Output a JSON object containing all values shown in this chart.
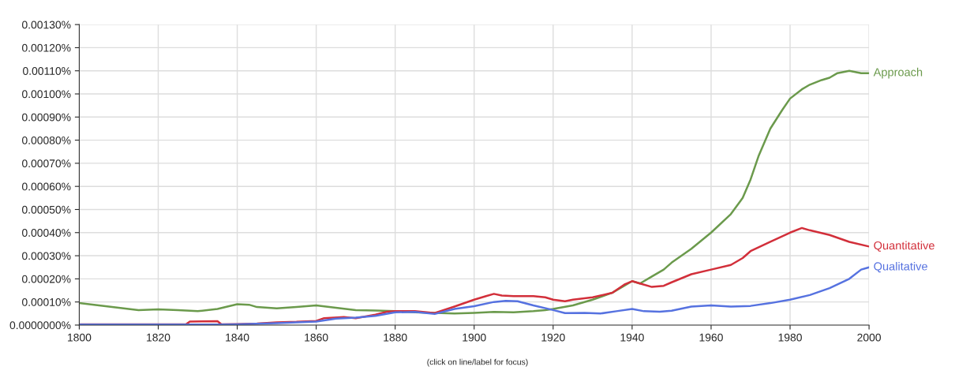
{
  "chart_data": {
    "type": "line",
    "series": [
      {
        "name": "Approach",
        "color": "#6b9a4c",
        "x": [
          1800,
          1805,
          1810,
          1815,
          1820,
          1825,
          1830,
          1835,
          1840,
          1843,
          1845,
          1850,
          1855,
          1860,
          1865,
          1870,
          1875,
          1880,
          1885,
          1890,
          1895,
          1900,
          1905,
          1910,
          1915,
          1918,
          1920,
          1925,
          1930,
          1935,
          1938,
          1940,
          1942,
          1945,
          1948,
          1950,
          1955,
          1960,
          1965,
          1968,
          1970,
          1972,
          1975,
          1978,
          1980,
          1983,
          1985,
          1988,
          1990,
          1992,
          1995,
          1998,
          2000
        ],
        "values": [
          9.5e-05,
          8.5e-05,
          7.5e-05,
          6.5e-05,
          6.8e-05,
          6.5e-05,
          6e-05,
          7e-05,
          9e-05,
          8.8e-05,
          7.8e-05,
          7.2e-05,
          7.8e-05,
          8.5e-05,
          7.5e-05,
          6.5e-05,
          6.3e-05,
          6e-05,
          5.5e-05,
          5.3e-05,
          5e-05,
          5.3e-05,
          5.7e-05,
          5.5e-05,
          6e-05,
          6.5e-05,
          7e-05,
          8.5e-05,
          0.00011,
          0.00014,
          0.00017,
          0.00019,
          0.00018,
          0.00021,
          0.00024,
          0.00027,
          0.00033,
          0.0004,
          0.00048,
          0.00055,
          0.00063,
          0.00073,
          0.00085,
          0.00093,
          0.00098,
          0.00102,
          0.00104,
          0.00106,
          0.00107,
          0.00109,
          0.0011,
          0.00109,
          0.00109
        ]
      },
      {
        "name": "Quantitative",
        "color": "#d22f3a",
        "x": [
          1800,
          1827,
          1828,
          1835,
          1836,
          1840,
          1845,
          1850,
          1855,
          1860,
          1862,
          1867,
          1870,
          1875,
          1878,
          1880,
          1885,
          1890,
          1895,
          1900,
          1903,
          1905,
          1907,
          1910,
          1915,
          1918,
          1920,
          1923,
          1925,
          1930,
          1935,
          1938,
          1940,
          1942,
          1945,
          1948,
          1950,
          1955,
          1960,
          1965,
          1968,
          1970,
          1975,
          1980,
          1983,
          1985,
          1990,
          1995,
          2000
        ],
        "values": [
          3e-06,
          3e-06,
          1.5e-05,
          1.7e-05,
          3e-06,
          4e-06,
          7e-06,
          1.2e-05,
          1.4e-05,
          1.8e-05,
          3e-05,
          3.5e-05,
          3e-05,
          4.5e-05,
          5.8e-05,
          6e-05,
          6e-05,
          5.2e-05,
          8e-05,
          0.00011,
          0.000125,
          0.000135,
          0.000128,
          0.000125,
          0.000125,
          0.00012,
          0.00011,
          0.000103,
          0.00011,
          0.00012,
          0.00014,
          0.000175,
          0.00019,
          0.00018,
          0.000165,
          0.00017,
          0.000185,
          0.00022,
          0.00024,
          0.00026,
          0.00029,
          0.00032,
          0.00036,
          0.0004,
          0.00042,
          0.00041,
          0.00039,
          0.00036,
          0.00034
        ]
      },
      {
        "name": "Qualitative",
        "color": "#5672e0",
        "x": [
          1800,
          1835,
          1840,
          1850,
          1860,
          1865,
          1870,
          1875,
          1880,
          1885,
          1890,
          1895,
          1900,
          1905,
          1908,
          1911,
          1915,
          1920,
          1923,
          1928,
          1932,
          1936,
          1940,
          1943,
          1947,
          1950,
          1955,
          1960,
          1965,
          1970,
          1975,
          1980,
          1985,
          1990,
          1995,
          1998,
          2000
        ],
        "values": [
          2e-06,
          2e-06,
          3e-06,
          8e-06,
          1.5e-05,
          2.8e-05,
          3.2e-05,
          4e-05,
          5.5e-05,
          5.7e-05,
          4.8e-05,
          7e-05,
          8.2e-05,
          0.0001,
          0.000105,
          0.000103,
          8.5e-05,
          6.5e-05,
          5.2e-05,
          5.3e-05,
          5e-05,
          6e-05,
          7e-05,
          6e-05,
          5.8e-05,
          6.2e-05,
          8e-05,
          8.5e-05,
          8e-05,
          8.3e-05,
          9.5e-05,
          0.00011,
          0.00013,
          0.00016,
          0.0002,
          0.00024,
          0.00025
        ]
      }
    ],
    "xlim": [
      1800,
      2000
    ],
    "xticks": [
      1800,
      1820,
      1840,
      1860,
      1880,
      1900,
      1920,
      1940,
      1960,
      1980,
      2000
    ],
    "ylim": [
      0,
      0.0013
    ],
    "yticks": [
      {
        "value": 0,
        "label": "0.0000000%"
      },
      {
        "value": 0.0001,
        "label": "0.00010%"
      },
      {
        "value": 0.0002,
        "label": "0.00020%"
      },
      {
        "value": 0.0003,
        "label": "0.00030%"
      },
      {
        "value": 0.0004,
        "label": "0.00040%"
      },
      {
        "value": 0.0005,
        "label": "0.00050%"
      },
      {
        "value": 0.0006,
        "label": "0.00060%"
      },
      {
        "value": 0.0007,
        "label": "0.00070%"
      },
      {
        "value": 0.0008,
        "label": "0.00080%"
      },
      {
        "value": 0.0009,
        "label": "0.00090%"
      },
      {
        "value": 0.001,
        "label": "0.00100%"
      },
      {
        "value": 0.0011,
        "label": "0.00110%"
      },
      {
        "value": 0.0012,
        "label": "0.00120%"
      },
      {
        "value": 0.0013,
        "label": "0.00130%"
      }
    ],
    "grid": true,
    "annotations": [
      "(click on line/label for focus)"
    ]
  }
}
